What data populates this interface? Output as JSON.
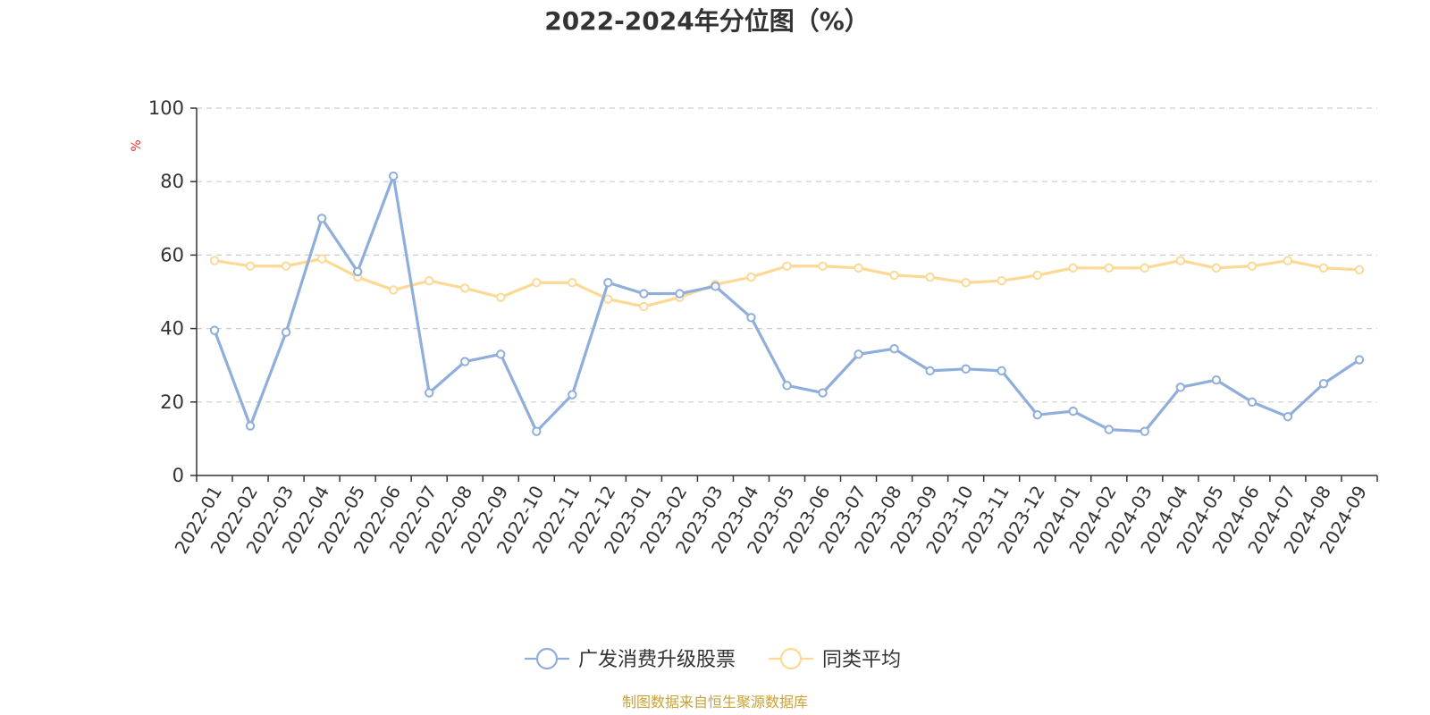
{
  "chart_data": {
    "type": "line",
    "title": "2022-2024年分位图（%）",
    "unit": "%",
    "ylim": [
      0,
      100
    ],
    "yticks": [
      0,
      20,
      40,
      60,
      80,
      100
    ],
    "grid": "horizontal dashed",
    "legend_position": "bottom",
    "categories": [
      "2022-01",
      "2022-02",
      "2022-03",
      "2022-04",
      "2022-05",
      "2022-06",
      "2022-07",
      "2022-08",
      "2022-09",
      "2022-10",
      "2022-11",
      "2022-12",
      "2023-01",
      "2023-02",
      "2023-03",
      "2023-04",
      "2023-05",
      "2023-06",
      "2023-07",
      "2023-08",
      "2023-09",
      "2023-10",
      "2023-11",
      "2023-12",
      "2024-01",
      "2024-02",
      "2024-03",
      "2024-04",
      "2024-05",
      "2024-06",
      "2024-07",
      "2024-08",
      "2024-09"
    ],
    "series": [
      {
        "name": "广发消费升级股票",
        "color": "#8FAEDB",
        "values": [
          39.5,
          13.5,
          39,
          70,
          55.5,
          81.5,
          22.5,
          31,
          33,
          12,
          22,
          52.5,
          49.5,
          49.5,
          51.5,
          43,
          24.5,
          22.5,
          33,
          34.5,
          28.5,
          29,
          28.5,
          16.5,
          17.5,
          12.5,
          12,
          24,
          26,
          20,
          16,
          25,
          31.5
        ]
      },
      {
        "name": "同类平均",
        "color": "#FDD995",
        "values": [
          58.5,
          57,
          57,
          59,
          54,
          50.5,
          53,
          51,
          48.5,
          52.5,
          52.5,
          48,
          46,
          48.5,
          52,
          54,
          57,
          57,
          56.5,
          54.5,
          54,
          52.5,
          53,
          54.5,
          56.5,
          56.5,
          56.5,
          58.5,
          56.5,
          57,
          58.5,
          56.5,
          56
        ]
      }
    ]
  },
  "source": {
    "text": "制图数据来自恒生聚源数据库",
    "color": "#C8A23A"
  },
  "colors": {
    "axis": "#333333",
    "grid": "#CCCCCC",
    "unit": "#E03030",
    "text": "#333333"
  }
}
